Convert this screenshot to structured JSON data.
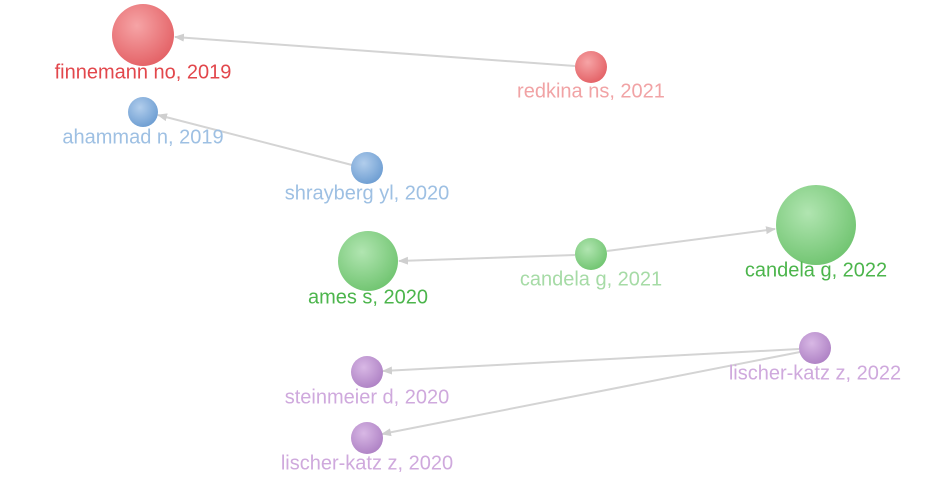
{
  "nodes": [
    {
      "label": "finnemann no, 2019"
    },
    {
      "label": "redkina ns, 2021"
    },
    {
      "label": "ahammad n, 2019"
    },
    {
      "label": "shrayberg yl, 2020"
    },
    {
      "label": "ames s, 2020"
    },
    {
      "label": "candela g, 2021"
    },
    {
      "label": "candela g, 2022"
    },
    {
      "label": "lischer-katz z, 2022"
    },
    {
      "label": "steinmeier d, 2020"
    },
    {
      "label": "lischer-katz z, 2020"
    }
  ]
}
